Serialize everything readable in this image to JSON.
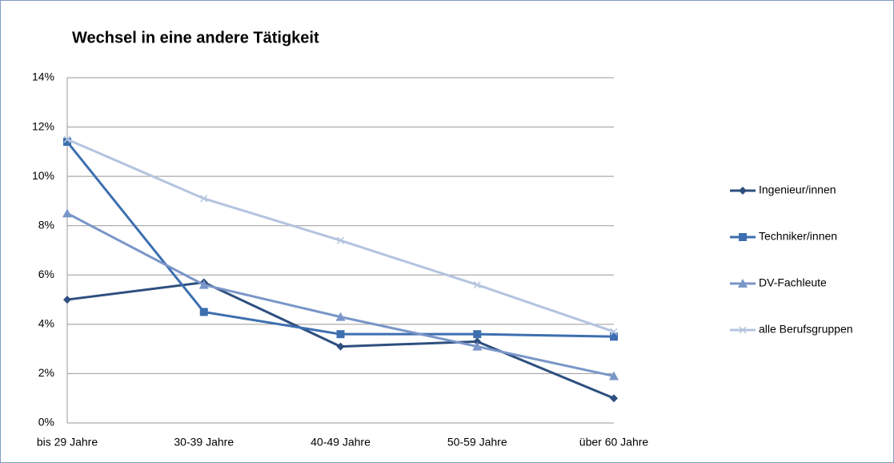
{
  "chart_data": {
    "type": "line",
    "title": "Wechsel in eine andere Tätigkeit",
    "categories": [
      "bis 29 Jahre",
      "30-39 Jahre",
      "40-49 Jahre",
      "50-59 Jahre",
      "über 60 Jahre"
    ],
    "series": [
      {
        "name": "Ingenieur/innen",
        "color": "#2e4f7f",
        "marker": "diamond",
        "values": [
          5.0,
          5.7,
          3.1,
          3.3,
          1.0
        ]
      },
      {
        "name": "Techniker/innen",
        "color": "#3d6fb0",
        "marker": "square",
        "values": [
          11.4,
          4.5,
          3.6,
          3.6,
          3.5
        ]
      },
      {
        "name": "DV-Fachleute",
        "color": "#7a96c8",
        "marker": "triangle",
        "values": [
          8.5,
          5.6,
          4.3,
          3.1,
          1.9
        ]
      },
      {
        "name": "alle Berufsgruppen",
        "color": "#b4c3df",
        "marker": "x",
        "values": [
          11.5,
          9.1,
          7.4,
          5.6,
          3.7
        ]
      }
    ],
    "ylim": [
      0,
      14
    ],
    "yticks": [
      {
        "value": 0,
        "label": "0%"
      },
      {
        "value": 2,
        "label": "2%"
      },
      {
        "value": 4,
        "label": "4%"
      },
      {
        "value": 6,
        "label": "6%"
      },
      {
        "value": 8,
        "label": "8%"
      },
      {
        "value": 10,
        "label": "10%"
      },
      {
        "value": 12,
        "label": "12%"
      },
      {
        "value": 14,
        "label": "14%"
      }
    ],
    "grid": true,
    "legend": "right"
  }
}
